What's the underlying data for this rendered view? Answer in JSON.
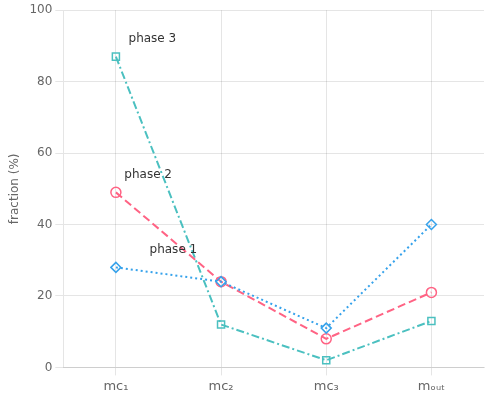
{
  "chart_data": {
    "type": "line",
    "categories": [
      "mc₁",
      "mc₂",
      "mc₃",
      "mₒᵤₜ"
    ],
    "series": [
      {
        "values": [
          28,
          24,
          11,
          40
        ],
        "marker": "diamond",
        "line_style": "dotted"
      },
      {
        "values": [
          49,
          24,
          8,
          21
        ],
        "marker": "circle",
        "line_style": "dashed"
      },
      {
        "values": [
          87,
          12,
          2,
          13
        ],
        "marker": "square",
        "line_style": "dashdot"
      }
    ],
    "y_label": "fraction (%)",
    "ylim": [
      0,
      100
    ],
    "yticks": [
      0,
      20,
      40,
      60,
      80,
      100
    ],
    "grid": true,
    "annotations": [
      {
        "text": "phase 1",
        "x": 0.32,
        "y": 32
      },
      {
        "text": "phase 2",
        "x": 0.08,
        "y": 53
      },
      {
        "text": "phase 3",
        "x": 0.12,
        "y": 91
      }
    ]
  }
}
